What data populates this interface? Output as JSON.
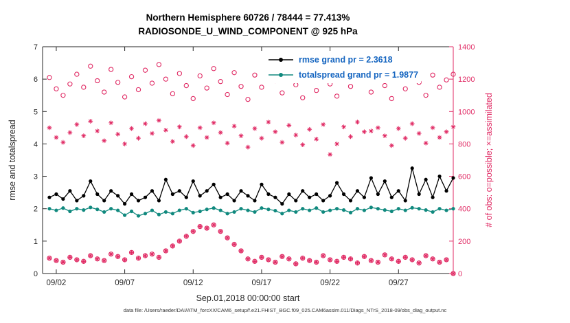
{
  "title": {
    "line1": "Northern Hemisphere 60726 / 78444 = 77.413%",
    "line2": "RADIOSONDE_U_WIND_COMPONENT @ 925 hPa"
  },
  "footer": "data file: /Users/raeder/DAI/ATM_forcXX/CAM6_setup/f.e21.FHIST_BGC.f09_025.CAM6assim.011/Diags_NTrS_2018-09/obs_diag_output.nc",
  "legend": {
    "rmse_label": "rmse grand pr = 2.3618",
    "totalspread_label": "totalspread grand pr = 1.9877"
  },
  "colors": {
    "rmse": "#000000",
    "totalspread": "#10897e",
    "obs": "#e02963",
    "axis": "#262626",
    "legend_text": "#1565c0"
  },
  "chart_data": {
    "type": "line",
    "title": "Northern Hemisphere 60726 / 78444 = 77.413% — RADIOSONDE_U_WIND_COMPONENT @ 925 hPa",
    "xlabel": "Sep.01,2018 00:00:00 start",
    "ylabel_left": "rmse and totalspread",
    "ylabel_right": "# of obs: o=possible; ×=assimilated",
    "xlim": [
      0,
      30
    ],
    "ylim_left": [
      0,
      7
    ],
    "ylim_right": [
      0,
      1400
    ],
    "grid": false,
    "legend_position": "top-right-inside",
    "xticks": {
      "days": [
        1,
        6,
        11,
        16,
        21,
        26
      ],
      "labels": [
        "09/02",
        "09/07",
        "09/12",
        "09/17",
        "09/22",
        "09/27"
      ]
    },
    "yticks_left": [
      0,
      1,
      2,
      3,
      4,
      5,
      6,
      7
    ],
    "yticks_right": [
      0,
      200,
      400,
      600,
      800,
      1000,
      1200,
      1400
    ],
    "x_start": 0.5,
    "x_step": 0.5,
    "n_points": 60,
    "grand_mean": {
      "rmse": 2.3618,
      "totalspread": 1.9877
    },
    "series": [
      {
        "name": "rmse",
        "color_key": "rmse",
        "axis": "left",
        "marker": "filled-circle",
        "line": true,
        "values": [
          2.35,
          2.45,
          2.3,
          2.55,
          2.25,
          2.4,
          2.85,
          2.45,
          2.25,
          2.55,
          2.4,
          2.15,
          2.45,
          2.25,
          2.35,
          2.55,
          2.25,
          2.9,
          2.45,
          2.55,
          2.35,
          2.85,
          2.4,
          2.55,
          2.75,
          2.35,
          2.45,
          2.25,
          2.55,
          2.4,
          2.25,
          2.75,
          2.45,
          2.35,
          2.15,
          2.45,
          2.25,
          2.55,
          2.35,
          2.45,
          2.25,
          2.4,
          2.8,
          2.45,
          2.25,
          2.55,
          2.35,
          2.95,
          2.45,
          2.85,
          2.35,
          2.55,
          2.25,
          3.25,
          2.45,
          2.9,
          2.35,
          3.0,
          2.55,
          2.95
        ]
      },
      {
        "name": "totalspread",
        "color_key": "totalspread",
        "axis": "left",
        "marker": "filled-circle",
        "line": true,
        "values": [
          2.0,
          1.95,
          2.02,
          1.92,
          2.0,
          1.96,
          2.04,
          1.98,
          1.9,
          2.0,
          1.95,
          1.8,
          1.92,
          1.78,
          1.85,
          1.95,
          1.82,
          1.9,
          1.85,
          1.95,
          2.0,
          1.88,
          1.92,
          1.98,
          2.02,
          1.95,
          1.85,
          1.9,
          2.0,
          1.95,
          1.9,
          2.02,
          1.98,
          1.94,
          1.85,
          1.95,
          1.9,
          2.0,
          1.95,
          2.02,
          1.9,
          1.95,
          2.0,
          1.96,
          1.88,
          2.0,
          1.95,
          2.04,
          2.0,
          1.96,
          1.92,
          2.0,
          1.95,
          2.03,
          2.0,
          1.96,
          1.9,
          2.0,
          1.95,
          2.0
        ]
      },
      {
        "name": "possible-obs",
        "color_key": "obs",
        "axis": "right",
        "marker": "open-circle",
        "line": false,
        "values": [
          1210,
          1140,
          1100,
          1170,
          1230,
          1150,
          1280,
          1190,
          1120,
          1260,
          1180,
          1090,
          1215,
          1135,
          1255,
          1175,
          1290,
          1200,
          1110,
          1235,
          1160,
          1080,
          1220,
          1145,
          1265,
          1185,
          1105,
          1240,
          1155,
          1075,
          1225,
          1150,
          1270,
          1190,
          1115,
          1245,
          1165,
          1085,
          1210,
          1130,
          1250,
          1170,
          1095,
          1230,
          1155,
          1275,
          1195,
          1120,
          1240,
          1160,
          1080,
          1215,
          1140,
          1260,
          1180,
          1100,
          1225,
          1150,
          1195,
          1230
        ]
      },
      {
        "name": "assimilated-obs",
        "color_key": "obs",
        "axis": "right",
        "marker": "asterisk",
        "line": false,
        "values": [
          900,
          840,
          810,
          870,
          920,
          850,
          940,
          880,
          820,
          930,
          860,
          800,
          895,
          835,
          925,
          865,
          945,
          885,
          815,
          905,
          845,
          790,
          900,
          840,
          930,
          870,
          805,
          910,
          850,
          780,
          895,
          835,
          935,
          875,
          810,
          915,
          855,
          795,
          890,
          830,
          920,
          735,
          800,
          905,
          845,
          935,
          875,
          880,
          900,
          850,
          790,
          895,
          835,
          925,
          865,
          805,
          900,
          840,
          875,
          905
        ]
      },
      {
        "name": "offsynoptic-obs",
        "color_key": "obs",
        "axis": "right",
        "marker": "open-circle+asterisk",
        "line": false,
        "values": [
          95,
          80,
          70,
          100,
          85,
          75,
          110,
          90,
          80,
          120,
          105,
          85,
          130,
          95,
          110,
          120,
          100,
          140,
          170,
          200,
          230,
          260,
          290,
          280,
          300,
          260,
          220,
          180,
          140,
          90,
          75,
          100,
          85,
          70,
          105,
          90,
          60,
          95,
          80,
          70,
          110,
          85,
          75,
          100,
          90,
          65,
          105,
          80,
          70,
          115,
          90,
          75,
          100,
          85,
          65,
          110,
          90,
          70,
          85,
          0
        ]
      }
    ]
  }
}
